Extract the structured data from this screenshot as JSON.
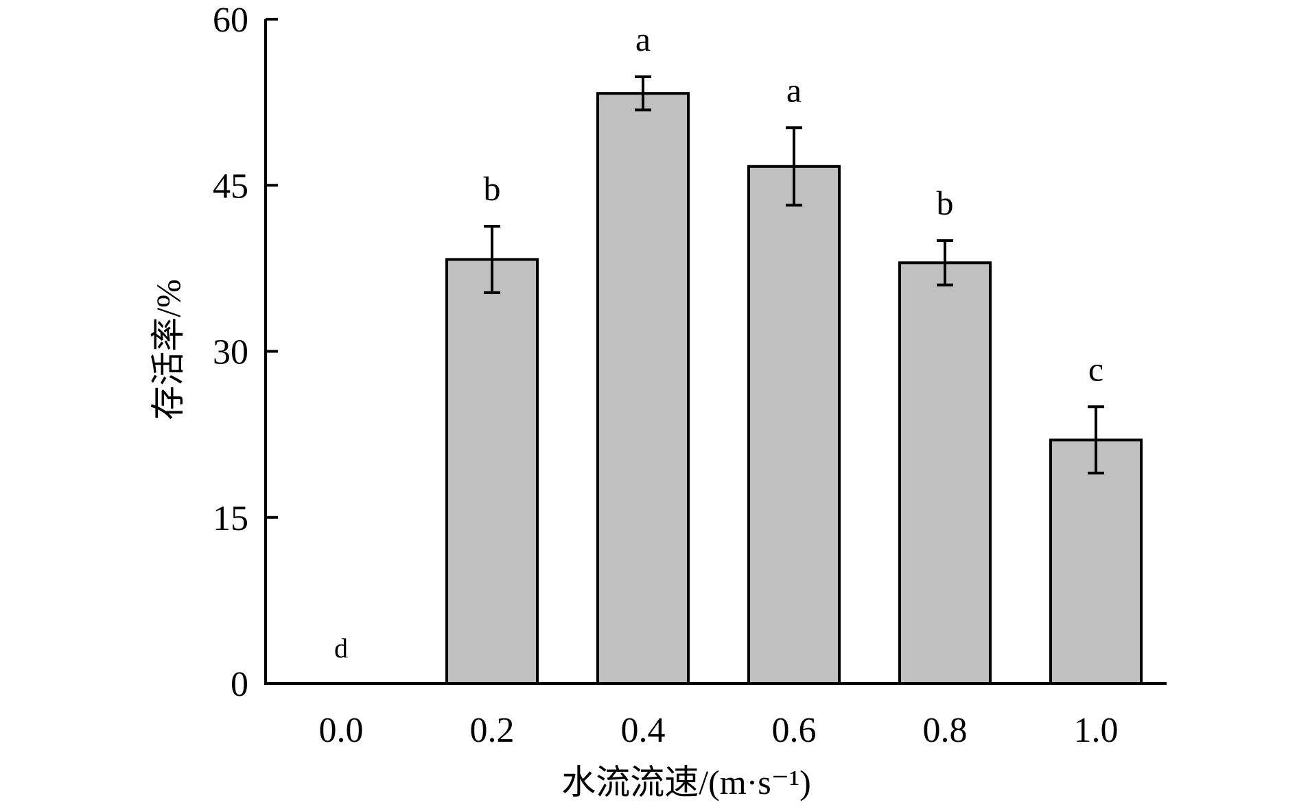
{
  "chart_data": {
    "type": "bar",
    "title": "",
    "xlabel": "水流流速/(m·s⁻¹)",
    "ylabel": "存活率/%",
    "categories": [
      "0.0",
      "0.2",
      "0.4",
      "0.6",
      "0.8",
      "1.0"
    ],
    "values": [
      0,
      38.3,
      53.3,
      46.7,
      38.0,
      22.0
    ],
    "errors": [
      0,
      3.0,
      1.5,
      3.5,
      2.0,
      3.0
    ],
    "significance_letters": [
      "d",
      "b",
      "a",
      "a",
      "b",
      "c"
    ],
    "ylim": [
      0,
      60
    ],
    "yticks": [
      "0",
      "15",
      "30",
      "45",
      "60"
    ],
    "grid": false,
    "legend": "none",
    "colors": {
      "bar_fill": "#c0c0c0",
      "bar_stroke": "#000000",
      "axis": "#000000"
    }
  }
}
